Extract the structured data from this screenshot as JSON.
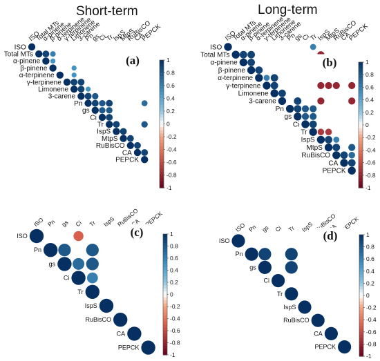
{
  "titles": {
    "left": "Short-term",
    "right": "Long-term"
  },
  "colors": {
    "negative_end": "#67001f",
    "neutral": "#ffffff",
    "positive_end": "#053061"
  },
  "chart_data": [
    {
      "type": "heatmap",
      "panel_label": "(a)",
      "variables": [
        "ISO",
        "Total MTs",
        "α-pinene",
        "β-pinene",
        "α-terpinene",
        "γ-terpinene",
        "Limonene",
        "3-carene",
        "Pn",
        "gs",
        "Ci",
        "Tr",
        "IspS",
        "MtpS",
        "RuBisCO",
        "CA",
        "PEPCK"
      ],
      "display": "upper-triangle circles, non-significant correlations blank",
      "colorbar": {
        "ticks": [
          "1",
          "0.8",
          "0.6",
          "0.4",
          "0.2",
          "0",
          "-0.2",
          "-0.4",
          "-0.6",
          "-0.8",
          "-1"
        ],
        "range": [
          -1,
          1
        ]
      },
      "cells": [
        [
          "ISO",
          "ISO",
          1
        ],
        [
          "Total MTs",
          "Total MTs",
          1
        ],
        [
          "α-pinene",
          "α-pinene",
          1
        ],
        [
          "β-pinene",
          "β-pinene",
          1
        ],
        [
          "α-terpinene",
          "α-terpinene",
          1
        ],
        [
          "γ-terpinene",
          "γ-terpinene",
          1
        ],
        [
          "Limonene",
          "Limonene",
          1
        ],
        [
          "3-carene",
          "3-carene",
          1
        ],
        [
          "Pn",
          "Pn",
          1
        ],
        [
          "gs",
          "gs",
          1
        ],
        [
          "Ci",
          "Ci",
          1
        ],
        [
          "Tr",
          "Tr",
          1
        ],
        [
          "IspS",
          "IspS",
          1
        ],
        [
          "MtpS",
          "MtpS",
          1
        ],
        [
          "RuBisCO",
          "RuBisCO",
          1
        ],
        [
          "CA",
          "CA",
          1
        ],
        [
          "PEPCK",
          "PEPCK",
          1
        ],
        [
          "Total MTs",
          "α-pinene",
          0.9
        ],
        [
          "Total MTs",
          "β-pinene",
          0.6
        ],
        [
          "α-pinene",
          "β-pinene",
          0.5
        ],
        [
          "β-pinene",
          "Limonene",
          0.5
        ],
        [
          "α-terpinene",
          "Limonene",
          0.5
        ],
        [
          "γ-terpinene",
          "Limonene",
          0.9
        ],
        [
          "γ-terpinene",
          "3-carene",
          0.9
        ],
        [
          "Limonene",
          "3-carene",
          0.9
        ],
        [
          "Limonene",
          "Pn",
          0.5
        ],
        [
          "3-carene",
          "Pn",
          0.9
        ],
        [
          "3-carene",
          "gs",
          0.8
        ],
        [
          "Pn",
          "gs",
          0.9
        ],
        [
          "Pn",
          "Ci",
          0.8
        ],
        [
          "Pn",
          "Tr",
          0.9
        ],
        [
          "gs",
          "Ci",
          0.8
        ],
        [
          "gs",
          "Tr",
          0.8
        ],
        [
          "Pn",
          "PEPCK",
          0.7
        ],
        [
          "Ci",
          "Tr",
          0.9
        ],
        [
          "Tr",
          "IspS",
          0.9
        ],
        [
          "Tr",
          "PEPCK",
          0.8
        ],
        [
          "IspS",
          "MtpS",
          0.9
        ],
        [
          "MtpS",
          "RuBisCO",
          0.9
        ],
        [
          "RuBisCO",
          "CA",
          0.9
        ],
        [
          "CA",
          "PEPCK",
          0.9
        ]
      ]
    },
    {
      "type": "heatmap",
      "panel_label": "(b)",
      "variables": [
        "ISO",
        "Total MTs",
        "α-pinene",
        "β-pinene",
        "α-terpinene",
        "γ-terpinene",
        "Limonene",
        "3-carene",
        "Pn",
        "gs",
        "Ci",
        "Tr",
        "IspS",
        "MtpS",
        "RuBisCO",
        "CA",
        "PEPCK"
      ],
      "display": "upper-triangle circles, non-significant correlations blank",
      "colorbar": {
        "ticks": [
          "1",
          "0.8",
          "0.6",
          "0.4",
          "0.2",
          "0",
          "-0.2",
          "-0.4",
          "-0.6",
          "-0.8",
          "-1"
        ],
        "range": [
          -1,
          1
        ]
      },
      "cells": [
        [
          "ISO",
          "ISO",
          1
        ],
        [
          "Total MTs",
          "Total MTs",
          1
        ],
        [
          "α-pinene",
          "α-pinene",
          1
        ],
        [
          "β-pinene",
          "β-pinene",
          1
        ],
        [
          "α-terpinene",
          "α-terpinene",
          1
        ],
        [
          "γ-terpinene",
          "γ-terpinene",
          1
        ],
        [
          "Limonene",
          "Limonene",
          1
        ],
        [
          "3-carene",
          "3-carene",
          1
        ],
        [
          "Pn",
          "Pn",
          1
        ],
        [
          "gs",
          "gs",
          1
        ],
        [
          "Ci",
          "Ci",
          1
        ],
        [
          "Tr",
          "Tr",
          1
        ],
        [
          "IspS",
          "IspS",
          1
        ],
        [
          "MtpS",
          "MtpS",
          1
        ],
        [
          "RuBisCO",
          "RuBisCO",
          1
        ],
        [
          "CA",
          "CA",
          1
        ],
        [
          "PEPCK",
          "PEPCK",
          1
        ],
        [
          "ISO",
          "Tr",
          0.6
        ],
        [
          "Total MTs",
          "α-pinene",
          0.9
        ],
        [
          "Total MTs",
          "β-pinene",
          0.9
        ],
        [
          "Total MTs",
          "IspS",
          -0.8
        ],
        [
          "α-pinene",
          "β-pinene",
          0.9
        ],
        [
          "β-pinene",
          "α-terpinene",
          0.9
        ],
        [
          "α-terpinene",
          "γ-terpinene",
          0.6
        ],
        [
          "α-terpinene",
          "Limonene",
          0.9
        ],
        [
          "γ-terpinene",
          "Limonene",
          0.9
        ],
        [
          "γ-terpinene",
          "IspS",
          -0.8
        ],
        [
          "γ-terpinene",
          "MtpS",
          -0.8
        ],
        [
          "γ-terpinene",
          "RuBisCO",
          -0.8
        ],
        [
          "γ-terpinene",
          "PEPCK",
          -0.8
        ],
        [
          "Limonene",
          "3-carene",
          0.9
        ],
        [
          "3-carene",
          "IspS",
          -0.8
        ],
        [
          "3-carene",
          "PEPCK",
          -0.8
        ],
        [
          "3-carene",
          "gs",
          0.9
        ],
        [
          "Pn",
          "gs",
          0.9
        ],
        [
          "Pn",
          "Ci",
          0.8
        ],
        [
          "Pn",
          "Tr",
          0.8
        ],
        [
          "gs",
          "Ci",
          0.8
        ],
        [
          "gs",
          "Tr",
          0.8
        ],
        [
          "Ci",
          "Tr",
          0.9
        ],
        [
          "Tr",
          "IspS",
          -0.7
        ],
        [
          "Tr",
          "MtpS",
          -0.7
        ],
        [
          "IspS",
          "MtpS",
          0.9
        ],
        [
          "IspS",
          "RuBisCO",
          0.6
        ],
        [
          "MtpS",
          "RuBisCO",
          0.9
        ],
        [
          "MtpS",
          "PEPCK",
          0.8
        ],
        [
          "RuBisCO",
          "CA",
          0.9
        ],
        [
          "RuBisCO",
          "PEPCK",
          0.7
        ],
        [
          "CA",
          "PEPCK",
          0.9
        ]
      ]
    },
    {
      "type": "heatmap",
      "panel_label": "(c)",
      "variables": [
        "ISO",
        "Pn",
        "gs",
        "Ci",
        "Tr",
        "IspS",
        "RuBisCO",
        "CA",
        "PEPCK"
      ],
      "display": "upper-triangle circles, non-significant correlations blank",
      "colorbar": {
        "ticks": [
          "1",
          "0.8",
          "0.6",
          "0.4",
          "0.2",
          "0",
          "-0.2",
          "-0.4",
          "-0.6",
          "-0.8",
          "-1"
        ],
        "range": [
          -1,
          1
        ]
      },
      "cells": [
        [
          "ISO",
          "ISO",
          1
        ],
        [
          "ISO",
          "Ci",
          -0.5
        ],
        [
          "Pn",
          "Pn",
          1
        ],
        [
          "Pn",
          "gs",
          0.8
        ],
        [
          "Pn",
          "Tr",
          0.8
        ],
        [
          "gs",
          "gs",
          1
        ],
        [
          "gs",
          "Ci",
          0.7
        ],
        [
          "gs",
          "Tr",
          0.8
        ],
        [
          "Ci",
          "Ci",
          1
        ],
        [
          "Ci",
          "Tr",
          0.6
        ],
        [
          "Tr",
          "Tr",
          1
        ],
        [
          "IspS",
          "IspS",
          1
        ],
        [
          "RuBisCO",
          "RuBisCO",
          1
        ],
        [
          "CA",
          "CA",
          1
        ],
        [
          "PEPCK",
          "PEPCK",
          1
        ]
      ]
    },
    {
      "type": "heatmap",
      "panel_label": "(d)",
      "variables": [
        "ISO",
        "Pn",
        "gs",
        "Ci",
        "Tr",
        "IspS",
        "RuBisCO",
        "CA",
        "PEPCK"
      ],
      "display": "upper-triangle circles, non-significant correlations blank",
      "colorbar": {
        "ticks": [
          "1",
          "0.8",
          "0.6",
          "0.4",
          "0.2",
          "0",
          "-0.2",
          "-0.4",
          "-0.6",
          "-0.8",
          "-1"
        ],
        "range": [
          -1,
          1
        ]
      },
      "cells": [
        [
          "ISO",
          "ISO",
          1
        ],
        [
          "Pn",
          "Pn",
          1
        ],
        [
          "Pn",
          "gs",
          0.9
        ],
        [
          "Pn",
          "Tr",
          0.9
        ],
        [
          "gs",
          "gs",
          1
        ],
        [
          "gs",
          "Tr",
          0.9
        ],
        [
          "Ci",
          "Ci",
          1
        ],
        [
          "Tr",
          "Tr",
          1
        ],
        [
          "IspS",
          "IspS",
          1
        ],
        [
          "RuBisCO",
          "RuBisCO",
          1
        ],
        [
          "CA",
          "CA",
          1
        ],
        [
          "PEPCK",
          "PEPCK",
          1
        ]
      ]
    }
  ]
}
